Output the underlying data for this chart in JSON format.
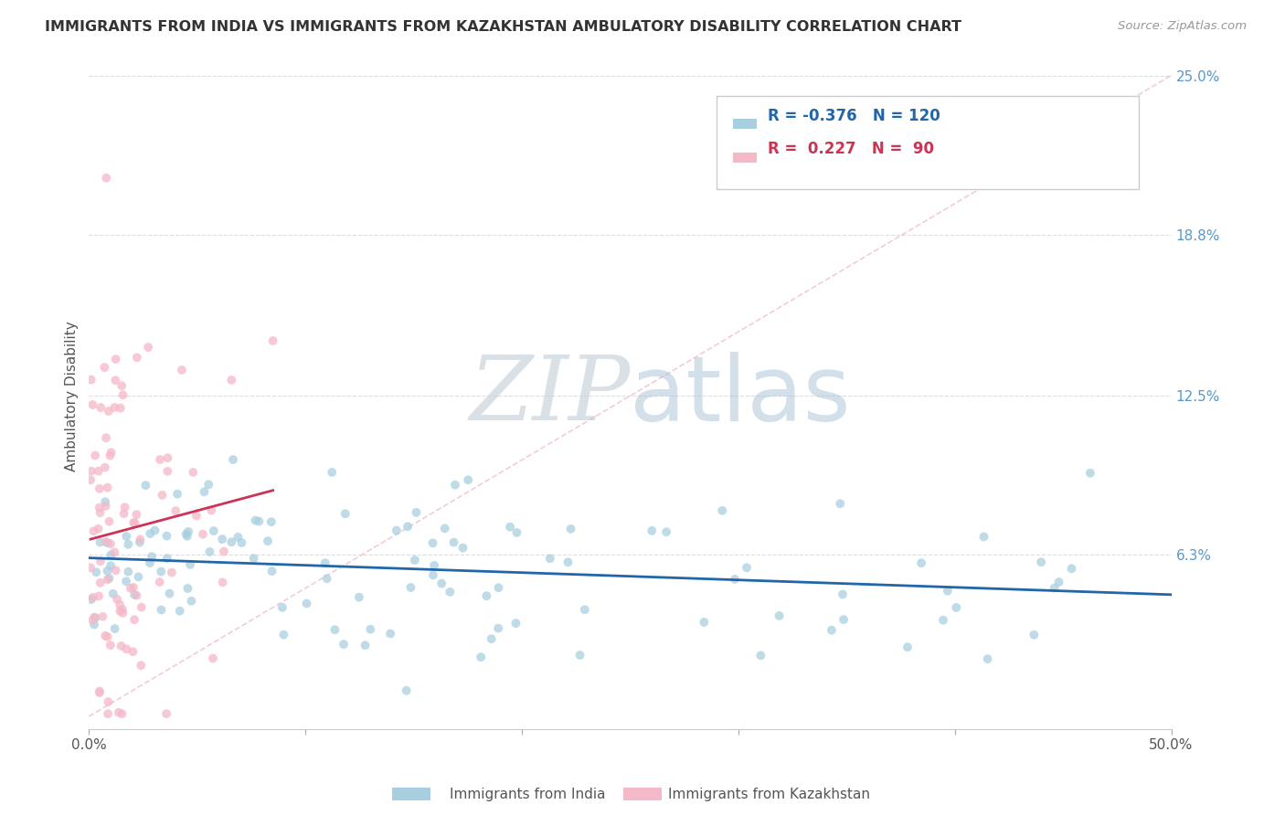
{
  "title": "IMMIGRANTS FROM INDIA VS IMMIGRANTS FROM KAZAKHSTAN AMBULATORY DISABILITY CORRELATION CHART",
  "source": "Source: ZipAtlas.com",
  "ylabel": "Ambulatory Disability",
  "xlim": [
    0.0,
    0.5
  ],
  "ylim": [
    -0.005,
    0.255
  ],
  "india_color": "#a8cfe0",
  "kazakhstan_color": "#f5b8c8",
  "india_R": -0.376,
  "india_N": 120,
  "kazakhstan_R": 0.227,
  "kazakhstan_N": 90,
  "india_line_color": "#2266aa",
  "kazakhstan_line_color": "#cc3355",
  "watermark_zip_color": "#c8d8e8",
  "watermark_atlas_color": "#b8c8d8",
  "background_color": "#ffffff",
  "grid_color": "#dddddd",
  "right_axis_color": "#5599cc",
  "title_color": "#333333",
  "ylabel_color": "#555555",
  "source_color": "#999999",
  "legend_text_india_color": "#2266aa",
  "legend_text_kaz_color": "#cc3355",
  "bottom_legend_color": "#555555"
}
